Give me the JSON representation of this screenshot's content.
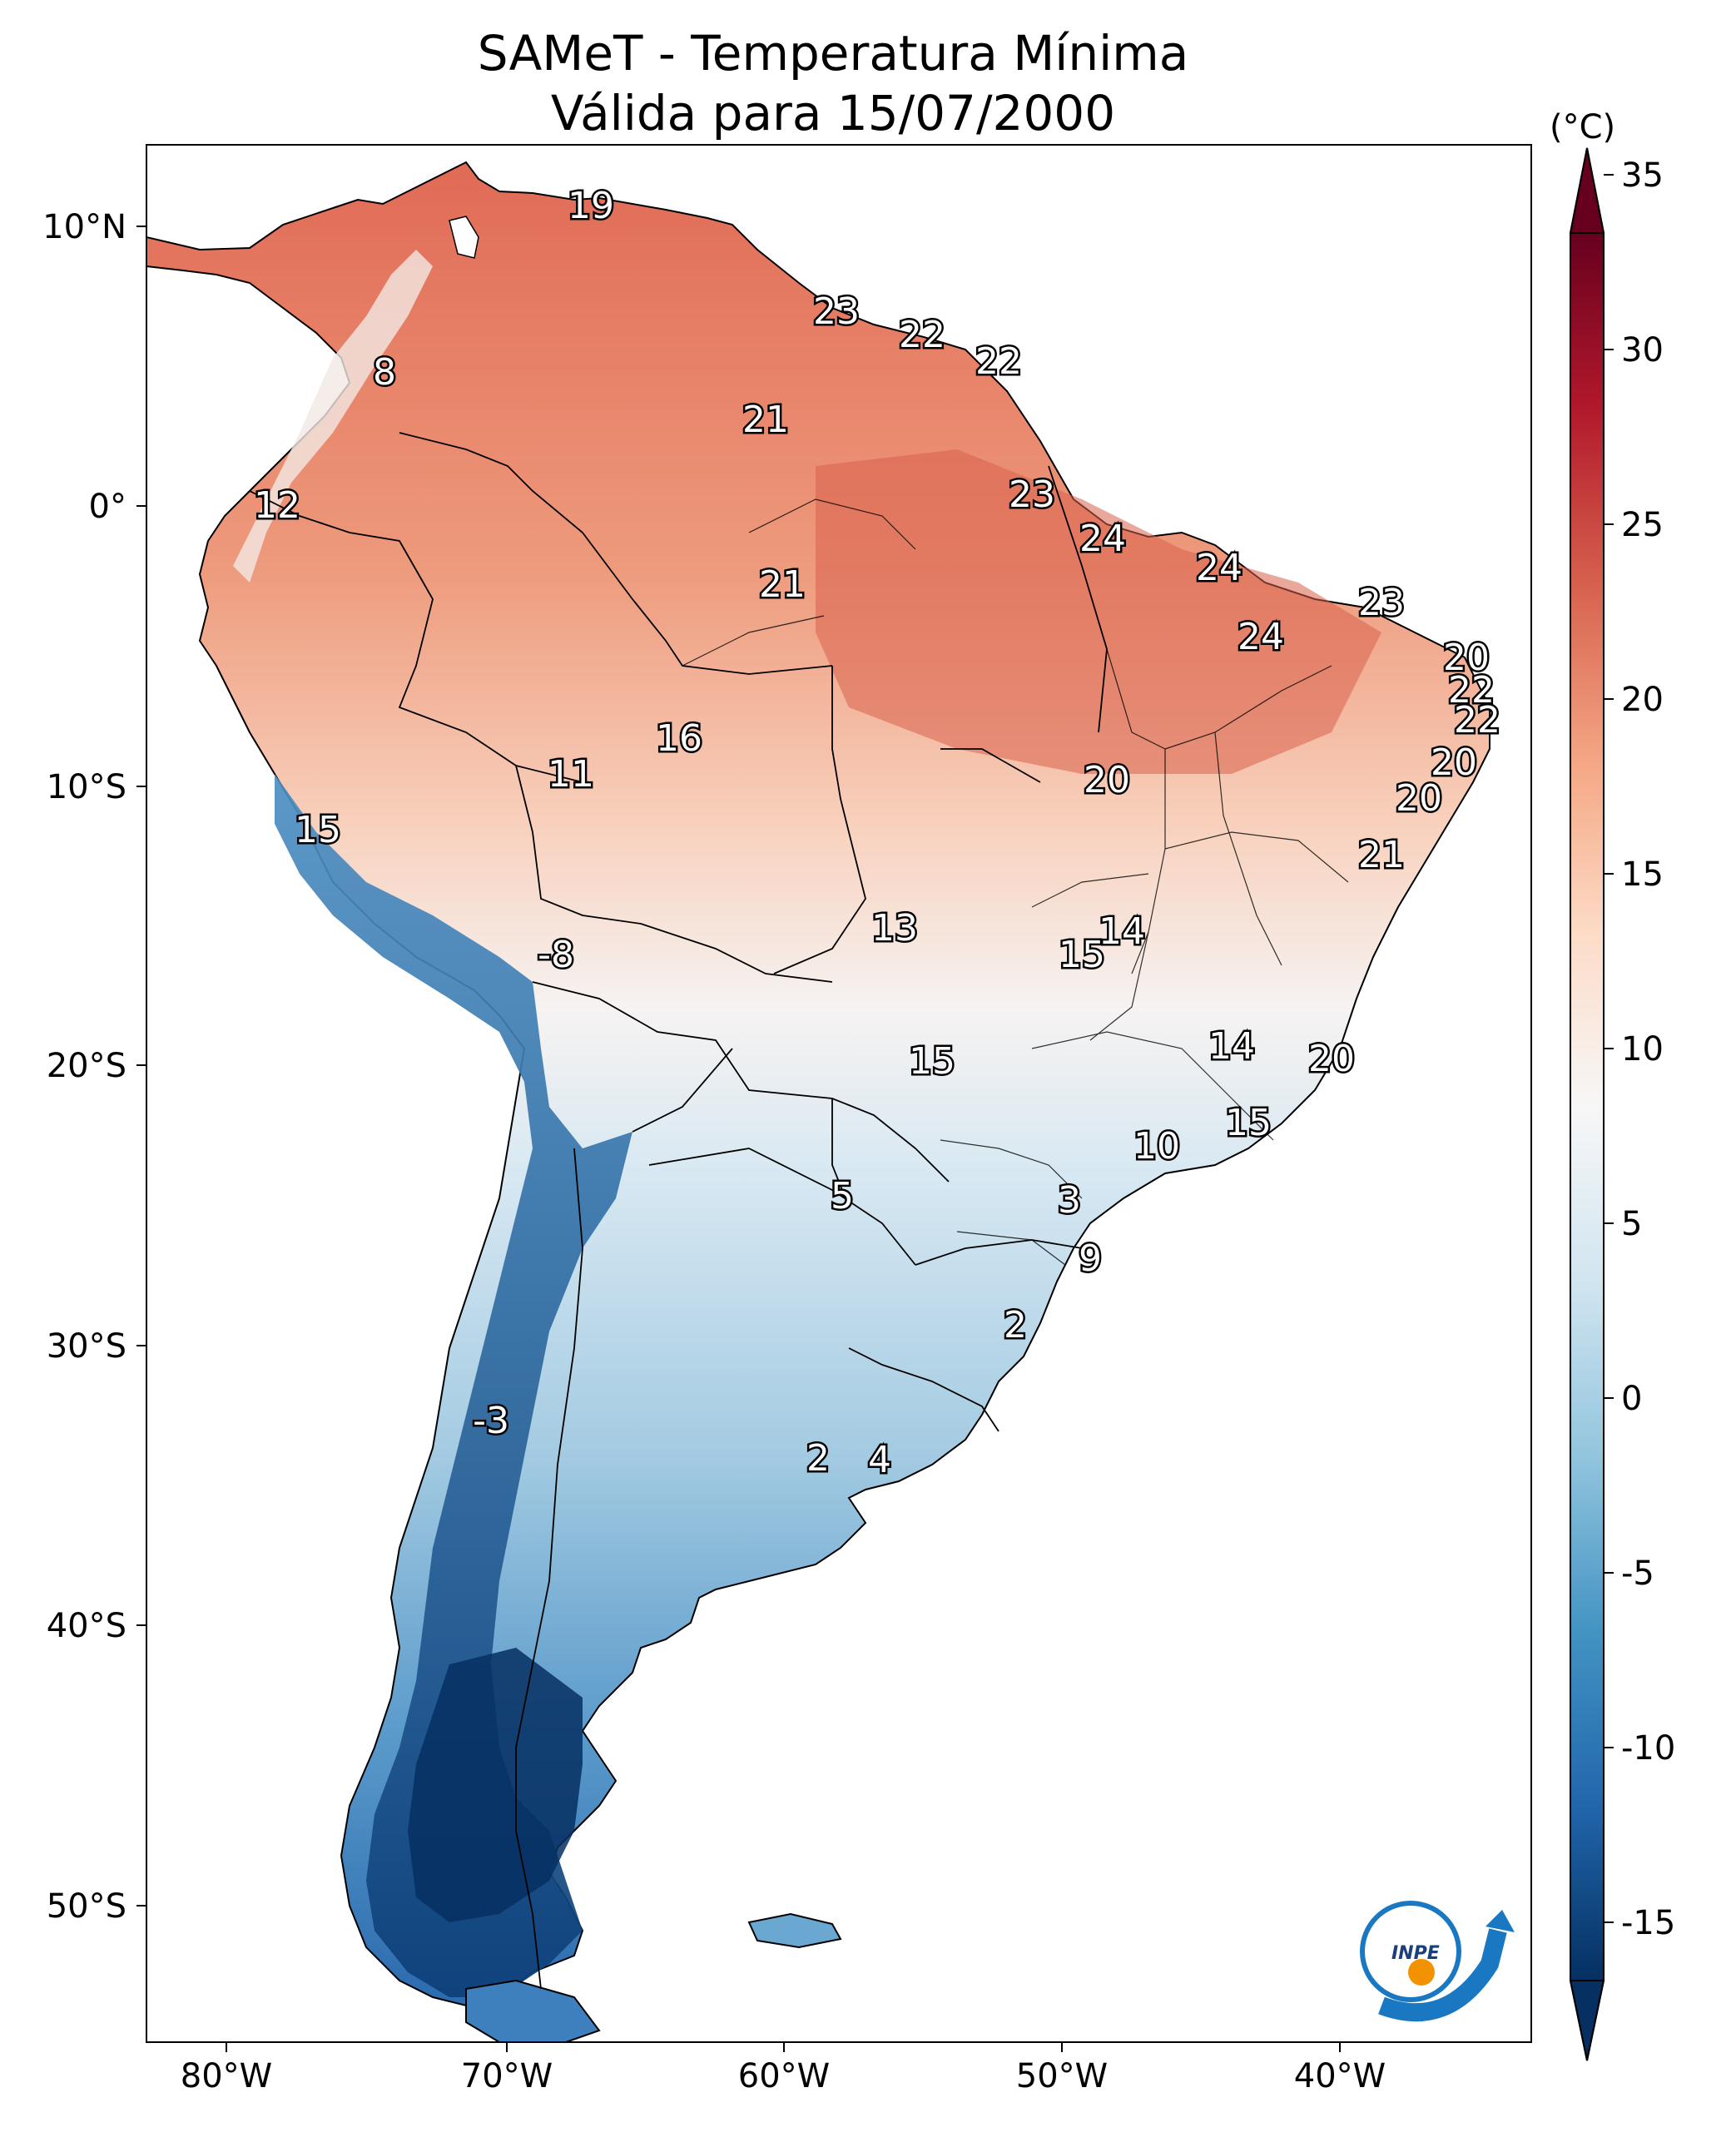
{
  "title": {
    "line1": "SAMeT - Temperatura Mínima",
    "line2": "Válida para 15/07/2000"
  },
  "colorbar": {
    "unit": "(°C)",
    "ticks": [
      "35",
      "30",
      "25",
      "20",
      "15",
      "10",
      "5",
      "0",
      "-5",
      "-10",
      "-15"
    ],
    "range": [
      -15,
      35
    ],
    "colors": [
      "#053061",
      "#2166ac",
      "#4393c3",
      "#92c5de",
      "#d1e5f0",
      "#f7f7f7",
      "#fddbc7",
      "#f4a582",
      "#d6604d",
      "#b2182b",
      "#67001f"
    ]
  },
  "axes": {
    "lon_ticks": [
      "80°W",
      "70°W",
      "60°W",
      "50°W",
      "40°W"
    ],
    "lat_ticks": [
      "10°N",
      "0°",
      "10°S",
      "20°S",
      "30°S",
      "40°S",
      "50°S"
    ]
  },
  "map_labels": [
    "19",
    "23",
    "22",
    "22",
    "8",
    "21",
    "12",
    "23",
    "24",
    "21",
    "24",
    "23",
    "24",
    "20",
    "22",
    "22",
    "16",
    "11",
    "20",
    "20",
    "15",
    "20",
    "21",
    "13",
    "14",
    "15",
    "-8",
    "15",
    "14",
    "20",
    "15",
    "10",
    "5",
    "3",
    "9",
    "2",
    "-3",
    "2",
    "4"
  ],
  "logo": {
    "text": "INPE"
  }
}
